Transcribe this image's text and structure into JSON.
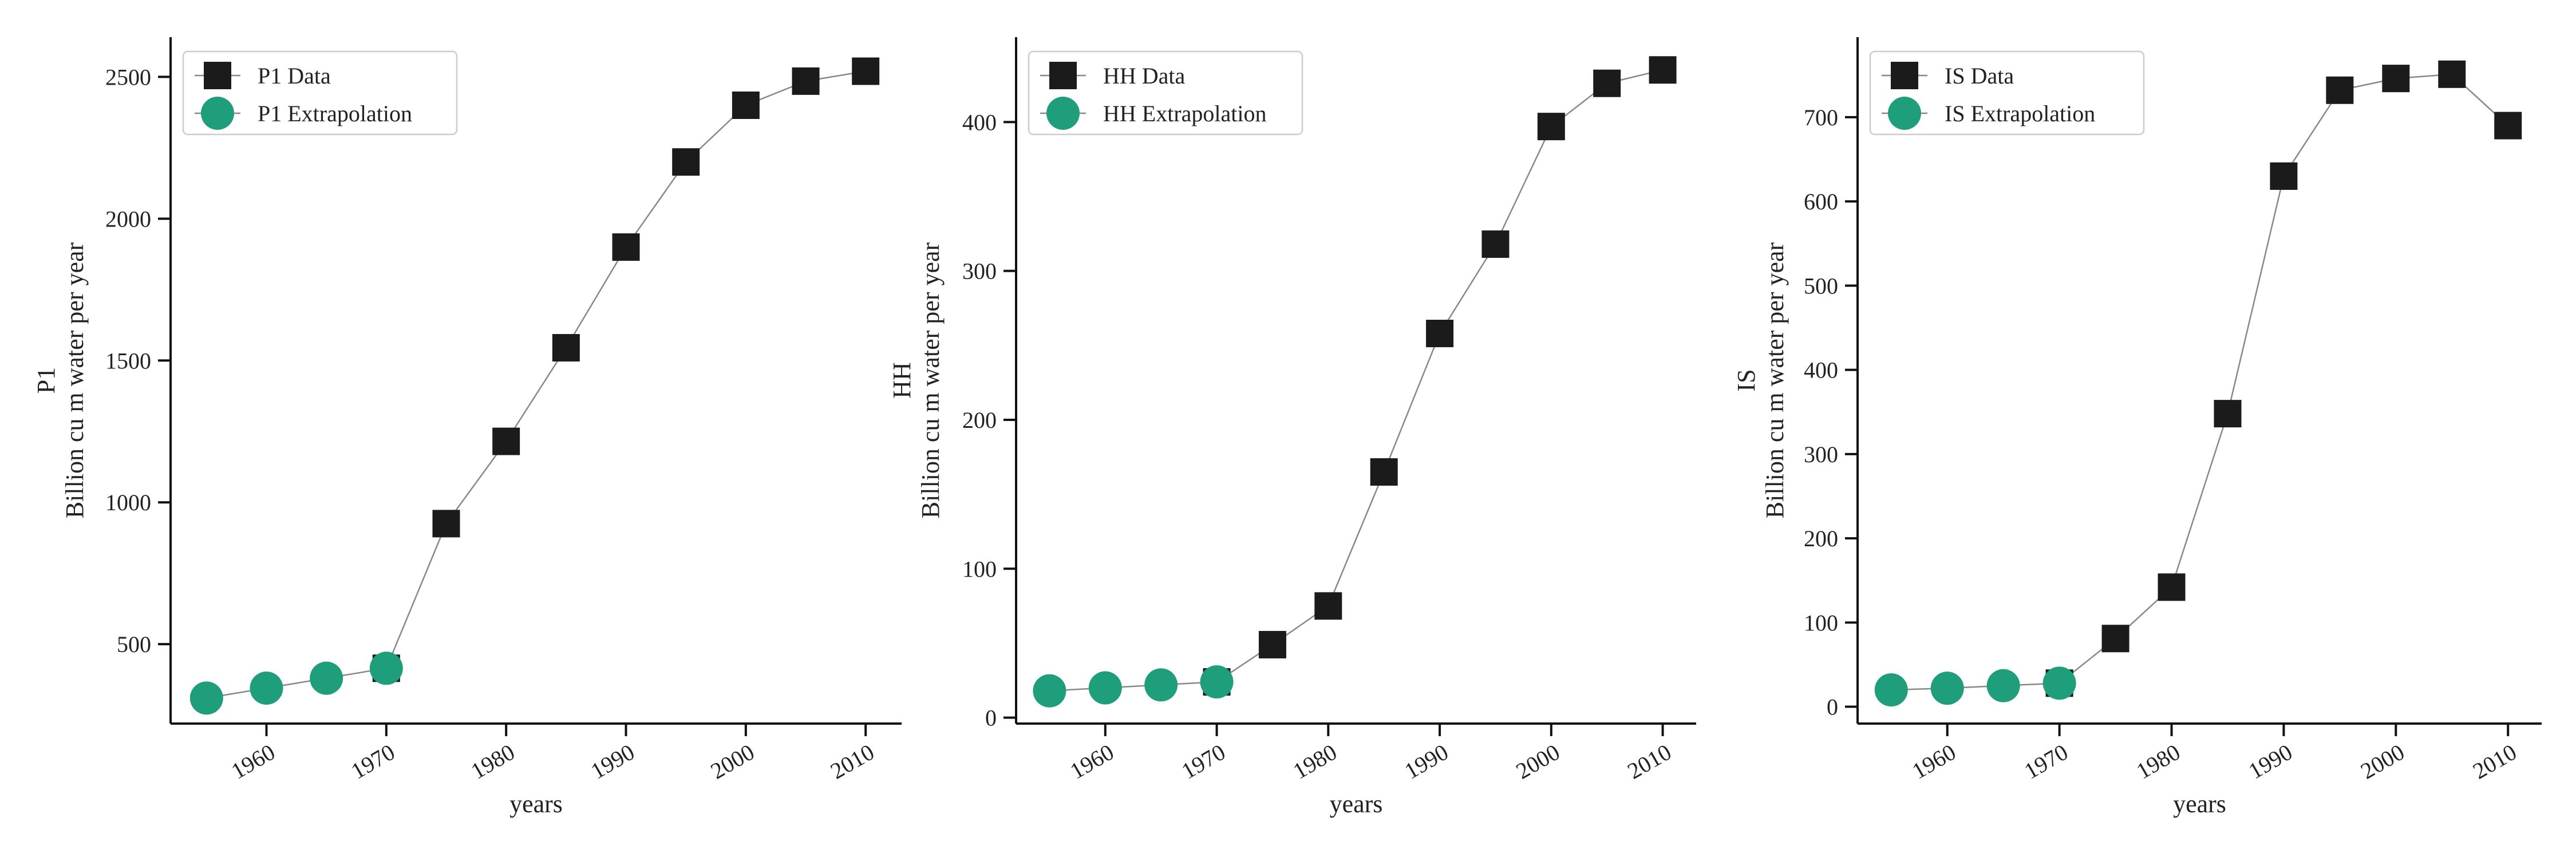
{
  "colors": {
    "data_marker": "#1b1b1b",
    "extrapolation_marker": "#1e9e7a",
    "line": "#888888",
    "axis": "#111111"
  },
  "chart_data": [
    {
      "type": "line",
      "id": "p1",
      "xlabel": "years",
      "ylabel": "P1\nBillion cu m water per year",
      "xlim": [
        1952,
        2013
      ],
      "ylim": [
        220,
        2640
      ],
      "xticks": [
        1960,
        1970,
        1980,
        1990,
        2000,
        2010
      ],
      "yticks": [
        500,
        1000,
        1500,
        2000,
        2500
      ],
      "legend_position": "top-left",
      "series": [
        {
          "name": "P1 Data",
          "marker": "square",
          "x": [
            1970,
            1975,
            1980,
            1985,
            1990,
            1995,
            2000,
            2005,
            2010
          ],
          "y": [
            415,
            925,
            1215,
            1545,
            1900,
            2200,
            2400,
            2485,
            2520
          ]
        },
        {
          "name": "P1 Extrapolation",
          "marker": "circle",
          "x": [
            1955,
            1960,
            1965,
            1970
          ],
          "y": [
            310,
            345,
            380,
            415
          ]
        }
      ]
    },
    {
      "type": "line",
      "id": "hh",
      "xlabel": "years",
      "ylabel": "HH\nBillion cu m water per year",
      "xlim": [
        1952,
        2013
      ],
      "ylim": [
        -4,
        457
      ],
      "xticks": [
        1960,
        1970,
        1980,
        1990,
        2000,
        2010
      ],
      "yticks": [
        0,
        100,
        200,
        300,
        400
      ],
      "legend_position": "top-left",
      "series": [
        {
          "name": "HH Data",
          "marker": "square",
          "x": [
            1970,
            1975,
            1980,
            1985,
            1990,
            1995,
            2000,
            2005,
            2010
          ],
          "y": [
            24,
            49,
            75,
            165,
            258,
            318,
            397,
            426,
            435
          ]
        },
        {
          "name": "HH Extrapolation",
          "marker": "circle",
          "x": [
            1955,
            1960,
            1965,
            1970
          ],
          "y": [
            18,
            20,
            22,
            24
          ]
        }
      ]
    },
    {
      "type": "line",
      "id": "is",
      "xlabel": "years",
      "ylabel": "IS\nBillion cu m water per year",
      "xlim": [
        1952,
        2013
      ],
      "ylim": [
        -20,
        795
      ],
      "xticks": [
        1960,
        1970,
        1980,
        1990,
        2000,
        2010
      ],
      "yticks": [
        0,
        100,
        200,
        300,
        400,
        500,
        600,
        700
      ],
      "legend_position": "top-left",
      "series": [
        {
          "name": "IS Data",
          "marker": "square",
          "x": [
            1970,
            1975,
            1980,
            1985,
            1990,
            1995,
            2000,
            2005,
            2010
          ],
          "y": [
            28,
            81,
            142,
            348,
            630,
            732,
            746,
            751,
            690
          ]
        },
        {
          "name": "IS Extrapolation",
          "marker": "circle",
          "x": [
            1955,
            1960,
            1965,
            1970
          ],
          "y": [
            20,
            22,
            25,
            28
          ]
        }
      ]
    }
  ]
}
